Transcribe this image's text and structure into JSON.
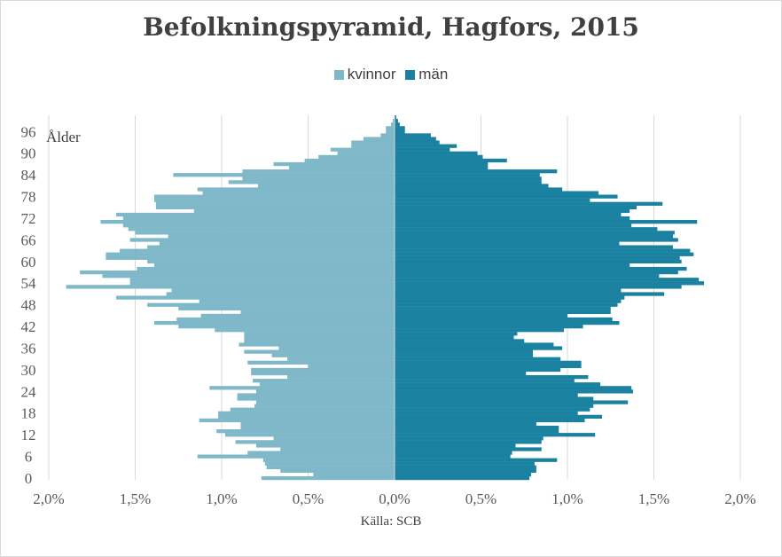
{
  "chart_data": {
    "type": "bar",
    "orientation": "horizontal-pyramid",
    "title": "Befolkningspyramid, Hagfors, 2015",
    "ylabel": "Ålder",
    "source": "Källa: SCB",
    "x_tick_labels": [
      "2,0%",
      "1,5%",
      "1,0%",
      "0,5%",
      "0,0%",
      "0,5%",
      "1,0%",
      "1,5%",
      "2,0%"
    ],
    "x_ticks": [
      -2.0,
      -1.5,
      -1.0,
      -0.5,
      0.0,
      0.5,
      1.0,
      1.5,
      2.0
    ],
    "xlim": [
      -2.0,
      2.0
    ],
    "y_tick_values": [
      0,
      6,
      12,
      18,
      24,
      30,
      36,
      42,
      48,
      54,
      60,
      66,
      72,
      78,
      84,
      90,
      96
    ],
    "ylim": [
      0,
      100
    ],
    "grid": "vertical",
    "legend_position": "top",
    "series": [
      {
        "name": "kvinnor",
        "side": "left",
        "color": "#7fb8c9",
        "ages": [
          0,
          1,
          2,
          3,
          4,
          5,
          6,
          7,
          8,
          9,
          10,
          11,
          12,
          13,
          14,
          15,
          16,
          17,
          18,
          19,
          20,
          21,
          22,
          23,
          24,
          25,
          26,
          27,
          28,
          29,
          30,
          31,
          32,
          33,
          34,
          35,
          36,
          37,
          38,
          39,
          40,
          41,
          42,
          43,
          44,
          45,
          46,
          47,
          48,
          49,
          50,
          51,
          52,
          53,
          54,
          55,
          56,
          57,
          58,
          59,
          60,
          61,
          62,
          63,
          64,
          65,
          66,
          67,
          68,
          69,
          70,
          71,
          72,
          73,
          74,
          75,
          76,
          77,
          78,
          79,
          80,
          81,
          82,
          83,
          84,
          85,
          86,
          87,
          88,
          89,
          90,
          91,
          92,
          93,
          94,
          95,
          96,
          97,
          98,
          99,
          100
        ],
        "values": [
          0.77,
          0.47,
          0.66,
          0.74,
          0.75,
          0.76,
          1.14,
          0.85,
          0.66,
          0.8,
          0.92,
          0.7,
          0.98,
          1.03,
          0.89,
          0.89,
          1.13,
          1.02,
          1.02,
          0.95,
          0.81,
          0.8,
          0.91,
          0.91,
          0.8,
          1.07,
          0.78,
          0.82,
          0.62,
          0.83,
          0.83,
          0.5,
          0.85,
          0.62,
          0.71,
          0.87,
          0.67,
          0.9,
          0.87,
          0.87,
          0.87,
          1.04,
          1.25,
          1.39,
          1.26,
          1.12,
          0.89,
          1.25,
          1.43,
          1.13,
          1.61,
          1.32,
          1.29,
          1.9,
          1.53,
          1.53,
          1.69,
          1.82,
          1.49,
          1.39,
          1.43,
          1.67,
          1.67,
          1.59,
          1.43,
          1.36,
          1.53,
          1.31,
          1.5,
          1.54,
          1.57,
          1.7,
          1.57,
          1.61,
          1.16,
          1.38,
          1.38,
          1.39,
          1.39,
          1.11,
          1.14,
          0.79,
          0.96,
          0.88,
          1.28,
          0.88,
          0.61,
          0.7,
          0.52,
          0.44,
          0.33,
          0.37,
          0.25,
          0.25,
          0.18,
          0.08,
          0.05,
          0.05,
          0.02,
          0.01,
          0.0
        ]
      },
      {
        "name": "män",
        "side": "right",
        "color": "#1a82a0",
        "ages": [
          0,
          1,
          2,
          3,
          4,
          5,
          6,
          7,
          8,
          9,
          10,
          11,
          12,
          13,
          14,
          15,
          16,
          17,
          18,
          19,
          20,
          21,
          22,
          23,
          24,
          25,
          26,
          27,
          28,
          29,
          30,
          31,
          32,
          33,
          34,
          35,
          36,
          37,
          38,
          39,
          40,
          41,
          42,
          43,
          44,
          45,
          46,
          47,
          48,
          49,
          50,
          51,
          52,
          53,
          54,
          55,
          56,
          57,
          58,
          59,
          60,
          61,
          62,
          63,
          64,
          65,
          66,
          67,
          68,
          69,
          70,
          71,
          72,
          73,
          74,
          75,
          76,
          77,
          78,
          79,
          80,
          81,
          82,
          83,
          84,
          85,
          86,
          87,
          88,
          89,
          90,
          91,
          92,
          93,
          94,
          95,
          96,
          97,
          98,
          99,
          100
        ],
        "values": [
          0.78,
          0.79,
          0.82,
          0.82,
          0.81,
          0.94,
          0.67,
          0.68,
          0.85,
          0.7,
          0.85,
          0.86,
          1.16,
          0.95,
          0.95,
          0.82,
          1.1,
          1.2,
          1.06,
          1.13,
          1.15,
          1.35,
          1.15,
          1.06,
          1.38,
          1.37,
          1.19,
          1.04,
          1.12,
          0.76,
          0.96,
          1.08,
          1.08,
          0.96,
          0.8,
          0.8,
          0.97,
          0.92,
          0.75,
          0.69,
          0.71,
          0.98,
          1.09,
          1.3,
          1.26,
          1.0,
          1.25,
          1.25,
          1.29,
          1.31,
          1.33,
          1.56,
          1.31,
          1.66,
          1.79,
          1.76,
          1.53,
          1.64,
          1.69,
          1.36,
          1.66,
          1.65,
          1.73,
          1.71,
          1.61,
          1.3,
          1.64,
          1.61,
          1.62,
          1.52,
          1.37,
          1.75,
          1.36,
          1.31,
          1.36,
          1.4,
          1.55,
          1.13,
          1.29,
          1.18,
          0.97,
          0.89,
          0.85,
          0.85,
          0.84,
          0.94,
          0.54,
          0.54,
          0.65,
          0.51,
          0.48,
          0.32,
          0.36,
          0.26,
          0.24,
          0.21,
          0.06,
          0.06,
          0.03,
          0.02,
          0.01
        ]
      }
    ]
  }
}
